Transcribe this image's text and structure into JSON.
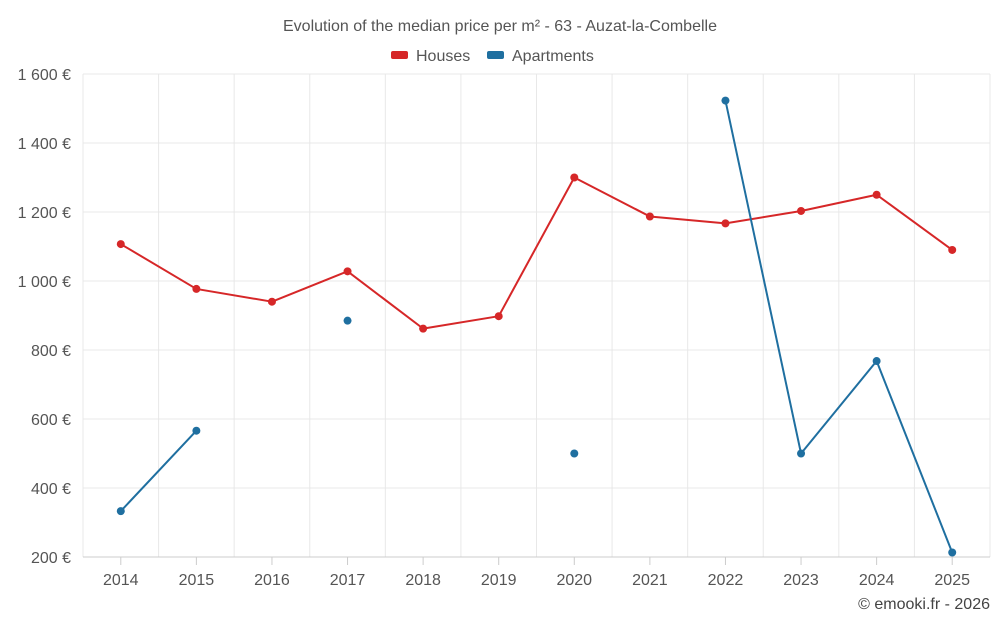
{
  "chart_data": {
    "type": "line",
    "title": "Evolution of the median price per m² - 63 - Auzat-la-Combelle",
    "categories": [
      "2014",
      "2015",
      "2016",
      "2017",
      "2018",
      "2019",
      "2020",
      "2021",
      "2022",
      "2023",
      "2024",
      "2025"
    ],
    "y_ticks": [
      200,
      400,
      600,
      800,
      1000,
      1200,
      1400,
      1600
    ],
    "y_tick_labels": [
      "200 €",
      "400 €",
      "600 €",
      "800 €",
      "1 000 €",
      "1 200 €",
      "1 400 €",
      "1 600 €"
    ],
    "ylim": [
      200,
      1600
    ],
    "grid": true,
    "legend_position": "top-center",
    "series": [
      {
        "name": "Houses",
        "color": "#d62728",
        "values": [
          1107,
          977,
          940,
          1028,
          862,
          898,
          1300,
          1187,
          1167,
          1203,
          1250,
          1090
        ]
      },
      {
        "name": "Apartments",
        "color": "#1f6fa0",
        "values": [
          333,
          566,
          null,
          885,
          null,
          null,
          500,
          null,
          1523,
          500,
          768,
          213
        ]
      }
    ]
  },
  "credit": "© emooki.fr - 2026"
}
